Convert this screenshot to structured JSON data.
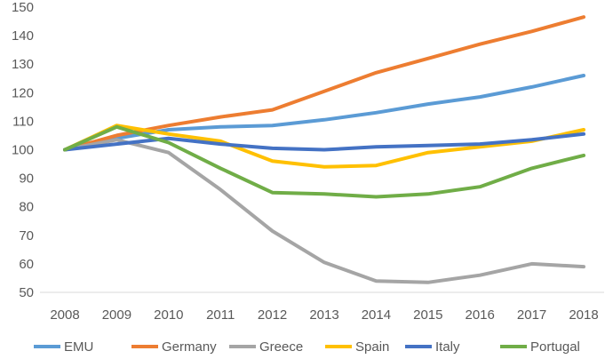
{
  "chart_data": {
    "type": "line",
    "title": "",
    "xlabel": "",
    "ylabel": "",
    "ylim": [
      50,
      150
    ],
    "yticks": [
      50,
      60,
      70,
      80,
      90,
      100,
      110,
      120,
      130,
      140,
      150
    ],
    "grid": false,
    "legend_position": "bottom",
    "x": [
      "2008",
      "2009",
      "2010",
      "2011",
      "2012",
      "2013",
      "2014",
      "2015",
      "2016",
      "2017",
      "2018"
    ],
    "series": [
      {
        "name": "EMU",
        "color": "#5B9BD5",
        "values": [
          100,
          104,
          107,
          108,
          108.5,
          110.5,
          113,
          116,
          118.5,
          122,
          126
        ]
      },
      {
        "name": "Germany",
        "color": "#ED7D31",
        "values": [
          100,
          105,
          108.5,
          111.5,
          114,
          120.5,
          127,
          132,
          137,
          141.5,
          146.5
        ]
      },
      {
        "name": "Greece",
        "color": "#A5A5A5",
        "values": [
          100,
          103.5,
          99,
          86,
          71.5,
          60.5,
          54,
          53.5,
          56,
          60,
          59
        ]
      },
      {
        "name": "Spain",
        "color": "#FFC000",
        "values": [
          100,
          108.5,
          105.5,
          103,
          96,
          94,
          94.5,
          99,
          101,
          103,
          107
        ]
      },
      {
        "name": "Italy",
        "color": "#4472C4",
        "values": [
          100,
          102,
          104,
          102,
          100.5,
          100,
          101,
          101.5,
          102,
          103.5,
          105.5
        ]
      },
      {
        "name": "Portugal",
        "color": "#70AD47",
        "values": [
          100,
          108,
          102.5,
          93.5,
          85,
          84.5,
          83.5,
          84.5,
          87,
          93.5,
          98
        ]
      }
    ]
  }
}
